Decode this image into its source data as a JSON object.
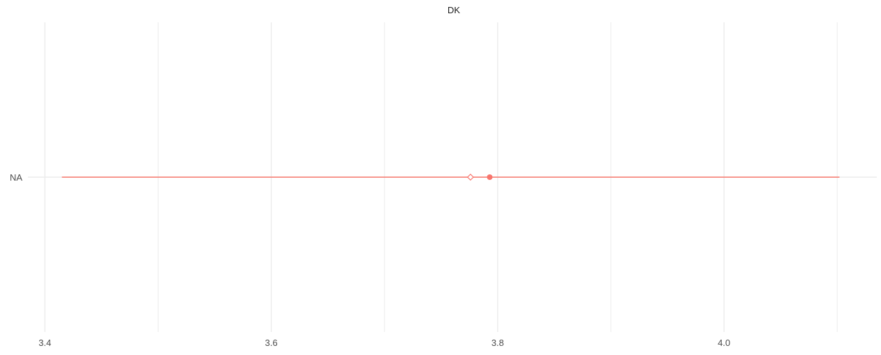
{
  "chart_data": {
    "type": "scatter",
    "title": "DK",
    "xlabel": "",
    "ylabel": "",
    "categories": [
      "NA"
    ],
    "xlim": [
      3.385,
      4.135
    ],
    "x_major_ticks": [
      3.4,
      3.6,
      3.8,
      4.0
    ],
    "x_tick_labels": [
      "3.4",
      "3.6",
      "3.8",
      "4.0"
    ],
    "x_minor_ticks": [
      3.5,
      3.7,
      3.9,
      4.1
    ],
    "grid": true,
    "series": [
      {
        "category": "NA",
        "interval_low": 3.415,
        "interval_high": 4.102,
        "point_filled": 3.793,
        "point_diamond": 3.776,
        "color": "#f8766d"
      }
    ],
    "colors": {
      "series": "#f8766d",
      "grid": "#ebebeb",
      "text": "#4d4d4d",
      "title": "#1a1a1a"
    }
  }
}
